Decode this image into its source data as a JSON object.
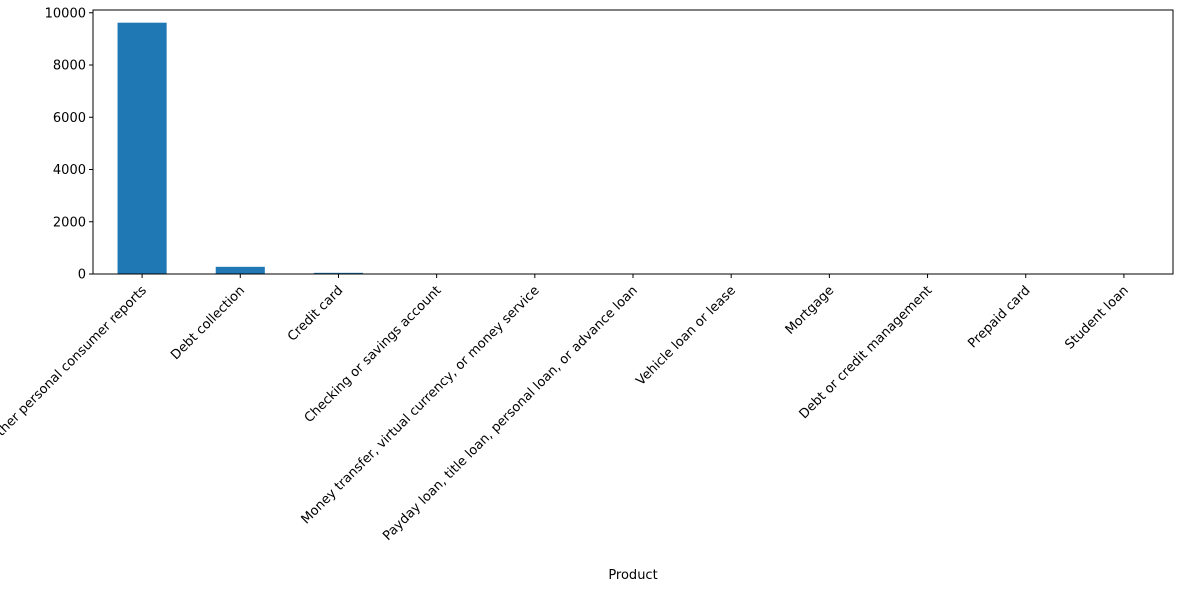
{
  "chart_data": {
    "type": "bar",
    "title": "",
    "xlabel": "Product",
    "ylabel": "",
    "categories": [
      "Credit reporting or other personal consumer reports",
      "Debt collection",
      "Credit card",
      "Checking or savings account",
      "Money transfer, virtual currency, or money service",
      "Payday loan, title loan, personal loan, or advance loan",
      "Vehicle loan or lease",
      "Mortgage",
      "Debt or credit management",
      "Prepaid card",
      "Student loan"
    ],
    "values": [
      9620,
      275,
      45,
      12,
      8,
      6,
      5,
      4,
      2,
      2,
      1
    ],
    "ylim": [
      0,
      10106
    ],
    "yticks": [
      0,
      2000,
      4000,
      6000,
      8000,
      10000
    ],
    "ytick_labels": [
      "0",
      "2000",
      "4000",
      "6000",
      "8000",
      "10000"
    ],
    "grid": false,
    "colors": {
      "bar": "#1f77b4",
      "axis": "#000000",
      "background": "#ffffff"
    }
  }
}
